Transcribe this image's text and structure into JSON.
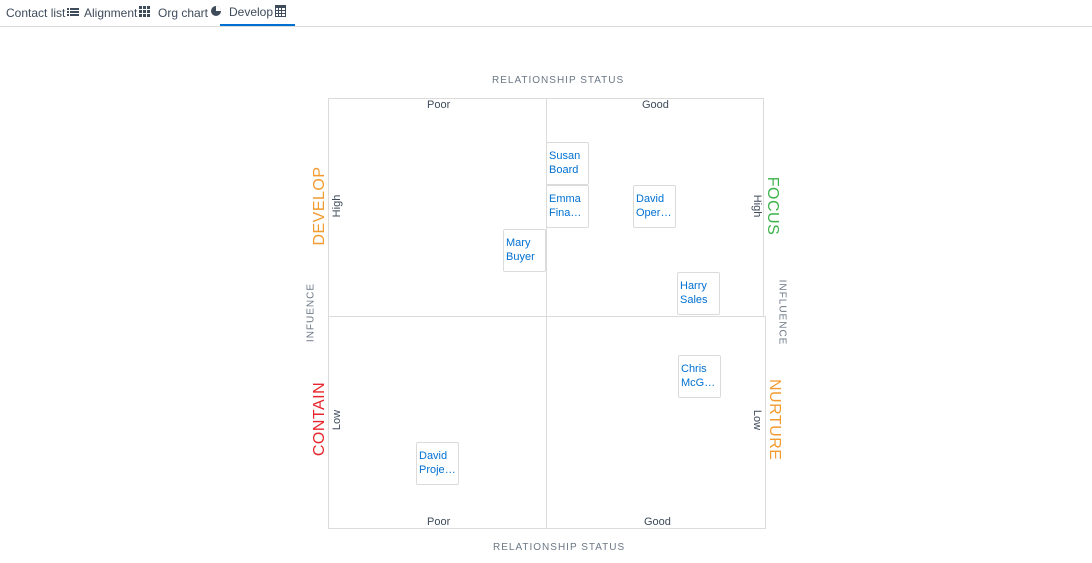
{
  "tabs": [
    {
      "label": "Contact list",
      "icon": "list-icon"
    },
    {
      "label": "Alignment",
      "icon": "grid-icon"
    },
    {
      "label": "Org chart",
      "icon": "pie-chart-icon"
    },
    {
      "label": "Develop",
      "icon": "table-icon"
    }
  ],
  "matrix": {
    "top_axis": "RELATIONSHIP STATUS",
    "bottom_axis": "RELATIONSHIP STATUS",
    "left_axis": "INFUENCE",
    "right_axis": "INFLUENCE",
    "poor": "Poor",
    "good": "Good",
    "high": "High",
    "low": "Low",
    "zones": {
      "develop": {
        "label": "DEVELOP",
        "color": "#f29b2f"
      },
      "focus": {
        "label": "FOCUS",
        "color": "#3bb34a"
      },
      "contain": {
        "label": "CONTAIN",
        "color": "#e8262d"
      },
      "nurture": {
        "label": "NURTURE",
        "color": "#f29b2f"
      }
    }
  },
  "contacts": [
    {
      "line1": "Susan",
      "line2": "Board"
    },
    {
      "line1": "Emma",
      "line2": "Finance"
    },
    {
      "line1": "David",
      "line2": "Operat..."
    },
    {
      "line1": "Mary",
      "line2": "Buyer"
    },
    {
      "line1": "Harry",
      "line2": "Sales"
    },
    {
      "line1": "Chris",
      "line2": "McGre..."
    },
    {
      "line1": "David",
      "line2": "Projects"
    }
  ]
}
